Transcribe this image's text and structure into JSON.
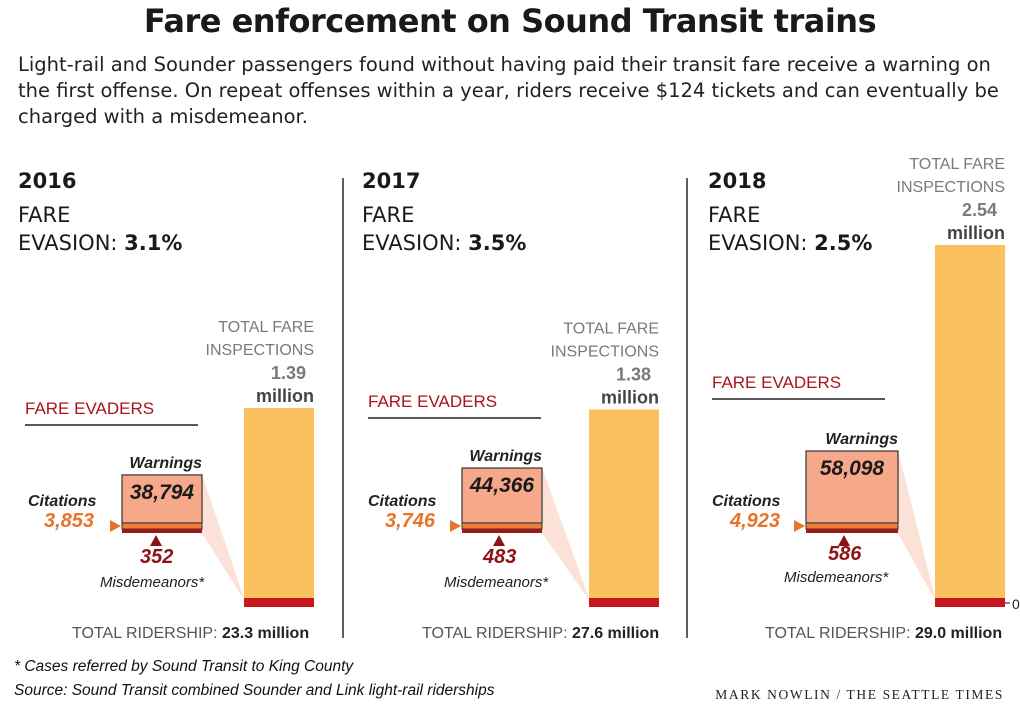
{
  "title": "Fare enforcement on Sound Transit trains",
  "subtitle": "Light-rail and Sounder passengers found without having paid their transit fare receive a warning on the first offense. On repeat offenses within a year, riders receive $124 tickets and can eventually be charged with a misdemeanor.",
  "labels": {
    "fare": "FARE",
    "evasion": "EVASION: ",
    "fare_evaders": "FARE EVADERS",
    "warnings": "Warnings",
    "citations": "Citations",
    "misdemeanors": "Misdemeanors*",
    "total_fare": "TOTAL FARE",
    "inspections": "INSPECTIONS",
    "million": "million",
    "total_ridership": "TOTAL RIDERSHIP: ",
    "zero": "0"
  },
  "footnote": "* Cases referred by Sound Transit to King County",
  "source": "Source: Sound Transit combined Sounder and Link light-rail riderships",
  "credit": "MARK NOWLIN / THE SEATTLE TIMES",
  "colors": {
    "inspections_bar": "#fbc15e",
    "ridership_base": "#c8171e",
    "warnings_box": "#f6a88b",
    "citations_strip": "#ee7f3b",
    "misdemeanors_strip": "#9c1a1d",
    "evaders_label": "#a8141b",
    "citations_text": "#e8732a",
    "misdemeanors_text": "#8c1418",
    "gray_text": "#7a7a7a"
  },
  "chart_data": {
    "type": "bar",
    "categories": [
      "2016",
      "2017",
      "2018"
    ],
    "series": [
      {
        "name": "TOTAL FARE INSPECTIONS",
        "values": [
          1.39,
          1.38,
          2.54
        ],
        "display": [
          "1.39",
          "1.38",
          "2.54"
        ],
        "unit": "million"
      },
      {
        "name": "Warnings",
        "values": [
          38794,
          44366,
          58098
        ],
        "display": [
          "38,794",
          "44,366",
          "58,098"
        ]
      },
      {
        "name": "Citations",
        "values": [
          3853,
          3746,
          4923
        ],
        "display": [
          "3,853",
          "3,746",
          "4,923"
        ]
      },
      {
        "name": "Misdemeanors*",
        "values": [
          352,
          483,
          586
        ],
        "display": [
          "352",
          "483",
          "586"
        ]
      },
      {
        "name": "TOTAL RIDERSHIP",
        "values": [
          23.3,
          27.6,
          29.0
        ],
        "display": [
          "23.3 million",
          "27.6 million",
          "29.0 million"
        ],
        "unit": "million"
      }
    ],
    "fare_evasion": {
      "values": [
        3.1,
        3.5,
        2.5
      ],
      "display": [
        "3.1%",
        "3.5%",
        "2.5%"
      ]
    },
    "ylim": [
      0,
      2.54
    ]
  }
}
